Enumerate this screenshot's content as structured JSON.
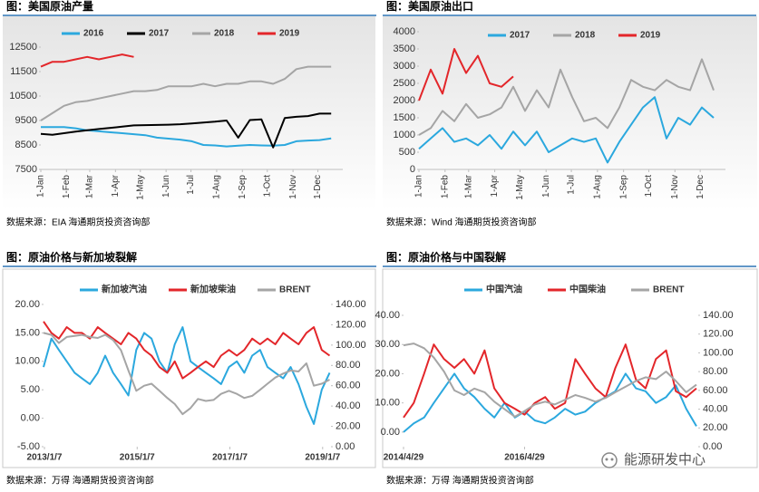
{
  "chart_data": [
    {
      "type": "line",
      "title": "图：美国原油产量",
      "source": "数据来源：EIA   海通期货投资咨询部",
      "x": [
        1,
        15,
        29,
        43,
        57,
        71,
        85,
        99,
        113,
        127,
        141,
        155,
        169,
        183,
        197,
        211,
        225,
        239,
        253,
        267,
        281,
        295,
        309,
        323,
        337,
        351
      ],
      "xlim": [
        1,
        365
      ],
      "xticks": [
        {
          "value": 1,
          "label": "1-Jan"
        },
        {
          "value": 32,
          "label": "1-Feb"
        },
        {
          "value": 60,
          "label": "1-Mar"
        },
        {
          "value": 91,
          "label": "1-Apr"
        },
        {
          "value": 121,
          "label": "1-May"
        },
        {
          "value": 152,
          "label": "1-Jun"
        },
        {
          "value": 182,
          "label": "1-Jul"
        },
        {
          "value": 213,
          "label": "1-Aug"
        },
        {
          "value": 244,
          "label": "1-Sep"
        },
        {
          "value": 274,
          "label": "1-Oct"
        },
        {
          "value": 305,
          "label": "1-Nov"
        },
        {
          "value": 335,
          "label": "1-Dec"
        }
      ],
      "ylim": [
        7500,
        12500
      ],
      "yticks": [
        7500,
        8500,
        9500,
        10500,
        11500,
        12500
      ],
      "legend": "top",
      "series": [
        {
          "name": "2016",
          "color": "#2ba8de",
          "values": [
            9230,
            9230,
            9230,
            9180,
            9100,
            9060,
            9020,
            8980,
            8940,
            8900,
            8800,
            8760,
            8720,
            8650,
            8500,
            8480,
            8440,
            8470,
            8500,
            8480,
            8470,
            8500,
            8650,
            8680,
            8700,
            8770
          ]
        },
        {
          "name": "2017",
          "color": "#000000",
          "values": [
            8950,
            8920,
            8980,
            9050,
            9100,
            9150,
            9200,
            9250,
            9300,
            9310,
            9320,
            9330,
            9350,
            9380,
            9420,
            9450,
            9500,
            8800,
            9520,
            9550,
            8400,
            9600,
            9650,
            9680,
            9780,
            9780
          ]
        },
        {
          "name": "2018",
          "color": "#a5a5a5",
          "values": [
            9500,
            9800,
            10100,
            10250,
            10300,
            10400,
            10500,
            10600,
            10700,
            10700,
            10750,
            10900,
            10900,
            10900,
            11000,
            10900,
            11000,
            11000,
            11100,
            11100,
            11000,
            11200,
            11600,
            11700,
            11700,
            11700
          ]
        },
        {
          "name": "2019",
          "color": "#e3262a",
          "values": [
            11700,
            11900,
            11900,
            12000,
            12100,
            12000,
            12100,
            12200,
            12100,
            null,
            null,
            null,
            null,
            null,
            null,
            null,
            null,
            null,
            null,
            null,
            null,
            null,
            null,
            null,
            null,
            null
          ]
        }
      ]
    },
    {
      "type": "line",
      "title": "图：美国原油出口",
      "source": "数据来源：Wind   海通期货投资咨询部",
      "x": [
        1,
        15,
        29,
        43,
        57,
        71,
        85,
        99,
        113,
        127,
        141,
        155,
        169,
        183,
        197,
        211,
        225,
        239,
        253,
        267,
        281,
        295,
        309,
        323,
        337,
        351
      ],
      "xlim": [
        1,
        365
      ],
      "xticks": [
        {
          "value": 1,
          "label": "1-Jan"
        },
        {
          "value": 32,
          "label": "1-Feb"
        },
        {
          "value": 60,
          "label": "1-Mar"
        },
        {
          "value": 91,
          "label": "1-Apr"
        },
        {
          "value": 121,
          "label": "1-May"
        },
        {
          "value": 152,
          "label": "1-Jun"
        },
        {
          "value": 182,
          "label": "1-Jul"
        },
        {
          "value": 213,
          "label": "1-Aug"
        },
        {
          "value": 244,
          "label": "1-Sep"
        },
        {
          "value": 274,
          "label": "1-Oct"
        },
        {
          "value": 305,
          "label": "1-Nov"
        },
        {
          "value": 335,
          "label": "1-Dec"
        }
      ],
      "ylim": [
        0,
        4000
      ],
      "yticks": [
        0,
        500,
        1000,
        1500,
        2000,
        2500,
        3000,
        3500,
        4000
      ],
      "legend": "top",
      "series": [
        {
          "name": "2017",
          "color": "#2ba8de",
          "values": [
            600,
            900,
            1200,
            800,
            900,
            700,
            1000,
            600,
            1100,
            700,
            1100,
            500,
            700,
            900,
            800,
            900,
            200,
            800,
            1300,
            1800,
            2100,
            900,
            1500,
            1300,
            1800,
            1500
          ]
        },
        {
          "name": "2018",
          "color": "#a5a5a5",
          "values": [
            1000,
            1200,
            1700,
            1400,
            1900,
            1500,
            1600,
            1800,
            2400,
            1700,
            2300,
            1800,
            2900,
            2100,
            1400,
            1500,
            1200,
            1800,
            2600,
            2400,
            2300,
            2600,
            2400,
            2300,
            3200,
            2300
          ]
        },
        {
          "name": "2019",
          "color": "#e3262a",
          "values": [
            2000,
            2900,
            2200,
            3500,
            2800,
            3300,
            2500,
            2400,
            2700,
            null,
            null,
            null,
            null,
            null,
            null,
            null,
            null,
            null,
            null,
            null,
            null,
            null,
            null,
            null,
            null,
            null
          ]
        }
      ]
    },
    {
      "type": "line",
      "title": "图：原油价格与新加坡裂解",
      "source": "数据来源：万得   海通期货投资咨询部",
      "x": [
        2013,
        2013.17,
        2013.33,
        2013.5,
        2013.67,
        2013.83,
        2014,
        2014.17,
        2014.33,
        2014.5,
        2014.67,
        2014.83,
        2015,
        2015.17,
        2015.33,
        2015.5,
        2015.67,
        2015.83,
        2016,
        2016.17,
        2016.33,
        2016.5,
        2016.67,
        2016.83,
        2017,
        2017.17,
        2017.33,
        2017.5,
        2017.67,
        2017.83,
        2018,
        2018.17,
        2018.33,
        2018.5,
        2018.67,
        2018.83,
        2019,
        2019.17
      ],
      "xlim": [
        2013,
        2019.2
      ],
      "xticks": [
        {
          "value": 2013.02,
          "label": "2013/1/7"
        },
        {
          "value": 2015.02,
          "label": "2015/1/7"
        },
        {
          "value": 2017.02,
          "label": "2017/1/7"
        },
        {
          "value": 2019.02,
          "label": "2019/1/7"
        }
      ],
      "ylim": [
        -5,
        20
      ],
      "yticks": [
        {
          "value": -5,
          "label": "-5.00"
        },
        {
          "value": 0,
          "label": "0.00"
        },
        {
          "value": 5,
          "label": "5.00"
        },
        {
          "value": 10,
          "label": "10.00"
        },
        {
          "value": 15,
          "label": "15.00"
        },
        {
          "value": 20,
          "label": "20.00"
        }
      ],
      "y2lim": [
        0,
        140
      ],
      "y2ticks": [
        {
          "value": 0,
          "label": "0.00"
        },
        {
          "value": 20,
          "label": "20.00"
        },
        {
          "value": 40,
          "label": "40.00"
        },
        {
          "value": 60,
          "label": "60.00"
        },
        {
          "value": 80,
          "label": "80.00"
        },
        {
          "value": 100,
          "label": "100.00"
        },
        {
          "value": 120,
          "label": "120.00"
        },
        {
          "value": 140,
          "label": "140.00"
        }
      ],
      "legend": "top",
      "series": [
        {
          "name": "新加坡汽油",
          "color": "#2ba8de",
          "values": [
            9,
            14,
            12,
            10,
            8,
            7,
            6,
            8,
            11,
            8,
            6,
            4,
            12,
            15,
            14,
            10,
            8,
            13,
            16,
            10,
            9,
            8,
            7,
            6,
            9,
            10,
            8,
            11,
            12,
            9,
            8,
            7,
            9,
            6,
            2,
            -1,
            5,
            8
          ]
        },
        {
          "name": "新加坡柴油",
          "color": "#e3262a",
          "values": [
            17,
            15,
            14,
            16,
            15,
            15,
            14,
            16,
            15,
            14,
            13,
            15,
            14,
            12,
            11,
            9,
            8,
            10,
            7,
            8,
            9,
            10,
            9,
            11,
            12,
            11,
            12,
            14,
            13,
            14,
            13,
            15,
            14,
            13,
            15,
            16,
            12,
            11
          ]
        },
        {
          "name": "BRENT",
          "color": "#a5a5a5",
          "axis": "y2",
          "values": [
            112,
            110,
            102,
            108,
            109,
            110,
            108,
            107,
            110,
            105,
            95,
            75,
            55,
            60,
            62,
            55,
            48,
            42,
            32,
            38,
            47,
            45,
            46,
            52,
            55,
            52,
            48,
            50,
            56,
            62,
            68,
            72,
            75,
            74,
            82,
            60,
            62,
            66
          ]
        }
      ]
    },
    {
      "type": "line",
      "title": "图：原油价格与中国裂解",
      "source": "数据来源：万得   海通期货投资咨询部",
      "x": [
        2014.33,
        2014.5,
        2014.67,
        2014.83,
        2015,
        2015.17,
        2015.33,
        2015.5,
        2015.67,
        2015.83,
        2016,
        2016.17,
        2016.33,
        2016.5,
        2016.67,
        2016.83,
        2017,
        2017.17,
        2017.33,
        2017.5,
        2017.67,
        2017.83,
        2018,
        2018.17,
        2018.33,
        2018.5,
        2018.67,
        2018.83,
        2019,
        2019.17
      ],
      "xlim": [
        2014.33,
        2019.2
      ],
      "xticks": [
        {
          "value": 2014.33,
          "label": "2014/4/29"
        },
        {
          "value": 2016.33,
          "label": "2016/4/29"
        }
      ],
      "ylim": [
        -5,
        40
      ],
      "yticks": [
        {
          "value": 0,
          "label": "0.00"
        },
        {
          "value": 10,
          "label": "10.00"
        },
        {
          "value": 20,
          "label": "20.00"
        },
        {
          "value": 30,
          "label": "30.00"
        },
        {
          "value": 40,
          "label": "40.00"
        }
      ],
      "y2lim": [
        0,
        140
      ],
      "y2ticks": [
        {
          "value": 0,
          "label": "0.00"
        },
        {
          "value": 20,
          "label": "20.00"
        },
        {
          "value": 40,
          "label": "40.00"
        },
        {
          "value": 60,
          "label": "60.00"
        },
        {
          "value": 80,
          "label": "80.00"
        },
        {
          "value": 100,
          "label": "100.00"
        },
        {
          "value": 120,
          "label": "120.00"
        },
        {
          "value": 140,
          "label": "140.00"
        }
      ],
      "legend": "top",
      "series": [
        {
          "name": "中国汽油",
          "color": "#2ba8de",
          "values": [
            0,
            3,
            5,
            10,
            15,
            20,
            15,
            12,
            8,
            5,
            10,
            5,
            7,
            4,
            3,
            5,
            8,
            6,
            7,
            10,
            12,
            14,
            20,
            15,
            14,
            10,
            12,
            16,
            8,
            2
          ]
        },
        {
          "name": "中国柴油",
          "color": "#e3262a",
          "values": [
            5,
            10,
            20,
            30,
            25,
            22,
            25,
            20,
            28,
            15,
            10,
            8,
            6,
            10,
            12,
            8,
            10,
            25,
            20,
            15,
            12,
            22,
            30,
            18,
            15,
            25,
            28,
            14,
            12,
            15
          ]
        },
        {
          "name": "BRENT",
          "color": "#a5a5a5",
          "axis": "y2",
          "values": [
            108,
            110,
            105,
            95,
            80,
            60,
            55,
            62,
            58,
            48,
            40,
            32,
            38,
            45,
            48,
            45,
            50,
            55,
            52,
            48,
            52,
            58,
            64,
            70,
            74,
            72,
            80,
            70,
            58,
            66
          ]
        }
      ]
    }
  ],
  "watermark": "能源研发中心"
}
